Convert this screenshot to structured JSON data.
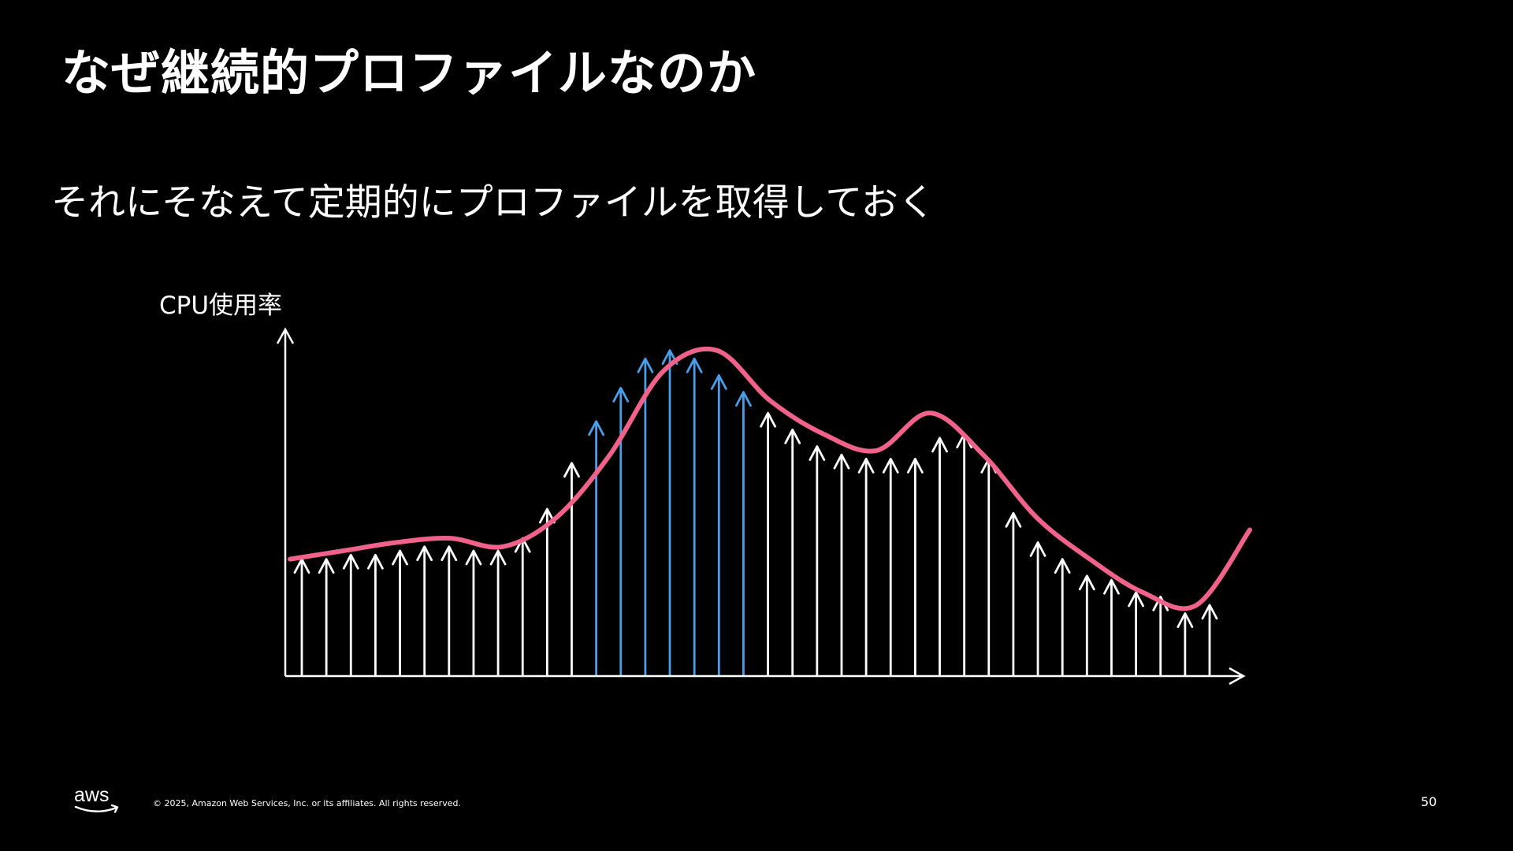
{
  "slide": {
    "title": "なぜ継続的プロファイルなのか",
    "subtitle": "それにそなえて定期的にプロファイルを取得しておく",
    "page_number": "50"
  },
  "footer": {
    "logo_text": "aws",
    "copyright": "© 2025, Amazon Web Services, Inc. or its affiliates. All rights reserved."
  },
  "diagram": {
    "y_axis_label": "CPU使用率",
    "colors": {
      "curve": "#f0628a",
      "sample_default": "#ffffff",
      "sample_highlight": "#4a9ee8",
      "axis": "#ffffff"
    },
    "curve_level": [
      0.28,
      0.3,
      0.32,
      0.33,
      0.31,
      0.38,
      0.53,
      0.73,
      0.78,
      0.66,
      0.58,
      0.54,
      0.63,
      0.53,
      0.38,
      0.28,
      0.2,
      0.17,
      0.35
    ],
    "samples": [
      {
        "level": 0.28,
        "highlight": false
      },
      {
        "level": 0.28,
        "highlight": false
      },
      {
        "level": 0.29,
        "highlight": false
      },
      {
        "level": 0.29,
        "highlight": false
      },
      {
        "level": 0.3,
        "highlight": false
      },
      {
        "level": 0.31,
        "highlight": false
      },
      {
        "level": 0.31,
        "highlight": false
      },
      {
        "level": 0.3,
        "highlight": false
      },
      {
        "level": 0.3,
        "highlight": false
      },
      {
        "level": 0.33,
        "highlight": false
      },
      {
        "level": 0.4,
        "highlight": false
      },
      {
        "level": 0.51,
        "highlight": false
      },
      {
        "level": 0.61,
        "highlight": true
      },
      {
        "level": 0.69,
        "highlight": true
      },
      {
        "level": 0.76,
        "highlight": true
      },
      {
        "level": 0.78,
        "highlight": true
      },
      {
        "level": 0.76,
        "highlight": true
      },
      {
        "level": 0.72,
        "highlight": true
      },
      {
        "level": 0.68,
        "highlight": true
      },
      {
        "level": 0.63,
        "highlight": false
      },
      {
        "level": 0.59,
        "highlight": false
      },
      {
        "level": 0.55,
        "highlight": false
      },
      {
        "level": 0.53,
        "highlight": false
      },
      {
        "level": 0.52,
        "highlight": false
      },
      {
        "level": 0.52,
        "highlight": false
      },
      {
        "level": 0.52,
        "highlight": false
      },
      {
        "level": 0.57,
        "highlight": false
      },
      {
        "level": 0.58,
        "highlight": false
      },
      {
        "level": 0.52,
        "highlight": false
      },
      {
        "level": 0.39,
        "highlight": false
      },
      {
        "level": 0.32,
        "highlight": false
      },
      {
        "level": 0.28,
        "highlight": false
      },
      {
        "level": 0.24,
        "highlight": false
      },
      {
        "level": 0.23,
        "highlight": false
      },
      {
        "level": 0.2,
        "highlight": false
      },
      {
        "level": 0.19,
        "highlight": false
      },
      {
        "level": 0.15,
        "highlight": false
      },
      {
        "level": 0.17,
        "highlight": false
      }
    ]
  }
}
